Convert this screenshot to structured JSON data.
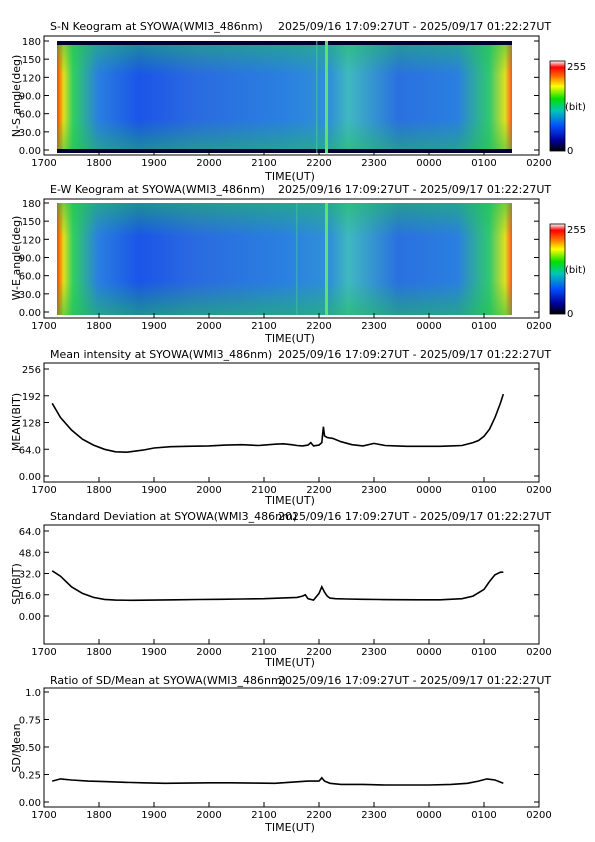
{
  "time_range": "2025/09/16 17:09:27UT - 2025/09/17 01:22:27UT",
  "x_ticks": [
    "1700",
    "1800",
    "1900",
    "2000",
    "2100",
    "2200",
    "2300",
    "0000",
    "0100",
    "0200"
  ],
  "x_label": "TIME(UT)",
  "colorbar": {
    "min_label": "0",
    "max_label": "255",
    "unit_label": "(bit)"
  },
  "colors": {
    "line": "#000000",
    "frame": "#000000"
  },
  "chart_data": [
    {
      "type": "heatmap",
      "title": "S-N Keogram at SYOWA(WMI3_486nm)",
      "ylabel": "N-S angle(deg)",
      "xlabel": "TIME(UT)",
      "x_range_hours": [
        17.0,
        26.0
      ],
      "ylim": [
        0,
        180
      ],
      "y_ticks": [
        "0.00",
        "30.0",
        "60.0",
        "90.0",
        "120",
        "150",
        "180"
      ],
      "colorscale_range": [
        0,
        255
      ]
    },
    {
      "type": "heatmap",
      "title": "E-W Keogram at SYOWA(WMI3_486nm)",
      "ylabel": "W-E angle(deg)",
      "xlabel": "TIME(UT)",
      "x_range_hours": [
        17.0,
        26.0
      ],
      "ylim": [
        0,
        180
      ],
      "y_ticks": [
        "0.00",
        "30.0",
        "60.0",
        "90.0",
        "120",
        "150",
        "180"
      ],
      "colorscale_range": [
        0,
        255
      ]
    },
    {
      "type": "line",
      "title": "Mean intensity at SYOWA(WMI3_486nm)",
      "ylabel": "MEAN(BIT)",
      "xlabel": "TIME(UT)",
      "ylim": [
        0,
        256
      ],
      "y_ticks": [
        "0.00",
        "64.0",
        "128",
        "192",
        "256"
      ],
      "x": [
        17.15,
        17.3,
        17.5,
        17.7,
        17.9,
        18.1,
        18.3,
        18.5,
        18.8,
        19.0,
        19.3,
        19.6,
        20.0,
        20.3,
        20.6,
        20.9,
        21.0,
        21.2,
        21.35,
        21.5,
        21.6,
        21.7,
        21.8,
        21.85,
        21.9,
        22.0,
        22.05,
        22.08,
        22.1,
        22.15,
        22.25,
        22.4,
        22.6,
        22.8,
        23.0,
        23.2,
        23.4,
        23.6,
        23.8,
        24.0,
        24.2,
        24.4,
        24.6,
        24.8,
        24.9,
        25.0,
        25.1,
        25.2,
        25.3,
        25.35
      ],
      "y": [
        174,
        140,
        110,
        88,
        74,
        64,
        58,
        57,
        62,
        67,
        70,
        71,
        72,
        74,
        75,
        73,
        74,
        76,
        77,
        75,
        73,
        72,
        74,
        80,
        72,
        74,
        80,
        118,
        96,
        92,
        90,
        82,
        75,
        72,
        78,
        73,
        72,
        71,
        71,
        71,
        71,
        72,
        73,
        80,
        85,
        95,
        112,
        140,
        175,
        196
      ]
    },
    {
      "type": "line",
      "title": "Standard Deviation at SYOWA(WMI3_486nm)",
      "ylabel": "SD(BIT)",
      "xlabel": "TIME(UT)",
      "ylim": [
        0,
        64
      ],
      "y_ticks": [
        "0.00",
        "16.0",
        "32.0",
        "48.0",
        "64.0"
      ],
      "x": [
        17.15,
        17.3,
        17.5,
        17.7,
        17.9,
        18.1,
        18.3,
        18.6,
        19.0,
        19.4,
        19.8,
        20.2,
        20.6,
        21.0,
        21.3,
        21.6,
        21.7,
        21.75,
        21.8,
        21.9,
        22.0,
        22.05,
        22.1,
        22.15,
        22.2,
        22.3,
        22.5,
        22.8,
        23.1,
        23.4,
        23.8,
        24.2,
        24.6,
        24.8,
        25.0,
        25.1,
        25.2,
        25.3,
        25.35
      ],
      "y": [
        34,
        30,
        22,
        17,
        14,
        12.5,
        12,
        11.8,
        12,
        12.2,
        12.4,
        12.6,
        12.8,
        13,
        13.5,
        14,
        15,
        16,
        13,
        12,
        17,
        22,
        18,
        15,
        13.5,
        13,
        12.8,
        12.6,
        12.4,
        12.3,
        12.2,
        12.2,
        13,
        15,
        20,
        26,
        31,
        33,
        33
      ]
    },
    {
      "type": "line",
      "title": "Ratio of SD/Mean at SYOWA(WMI3_486nm)",
      "ylabel": "SD/Mean",
      "xlabel": "TIME(UT)",
      "ylim": [
        0,
        1.0
      ],
      "y_ticks": [
        "0.00",
        "0.25",
        "0.50",
        "0.75",
        "1.0"
      ],
      "x": [
        17.15,
        17.3,
        17.5,
        17.8,
        18.1,
        18.4,
        18.8,
        19.2,
        19.6,
        20.0,
        20.4,
        20.8,
        21.2,
        21.5,
        21.8,
        22.0,
        22.05,
        22.1,
        22.2,
        22.4,
        22.8,
        23.2,
        23.6,
        24.0,
        24.4,
        24.7,
        24.9,
        25.05,
        25.2,
        25.35
      ],
      "y": [
        0.19,
        0.21,
        0.2,
        0.19,
        0.185,
        0.18,
        0.175,
        0.17,
        0.172,
        0.175,
        0.175,
        0.172,
        0.17,
        0.18,
        0.19,
        0.19,
        0.22,
        0.19,
        0.17,
        0.16,
        0.16,
        0.155,
        0.155,
        0.155,
        0.16,
        0.17,
        0.19,
        0.21,
        0.2,
        0.17
      ]
    }
  ]
}
